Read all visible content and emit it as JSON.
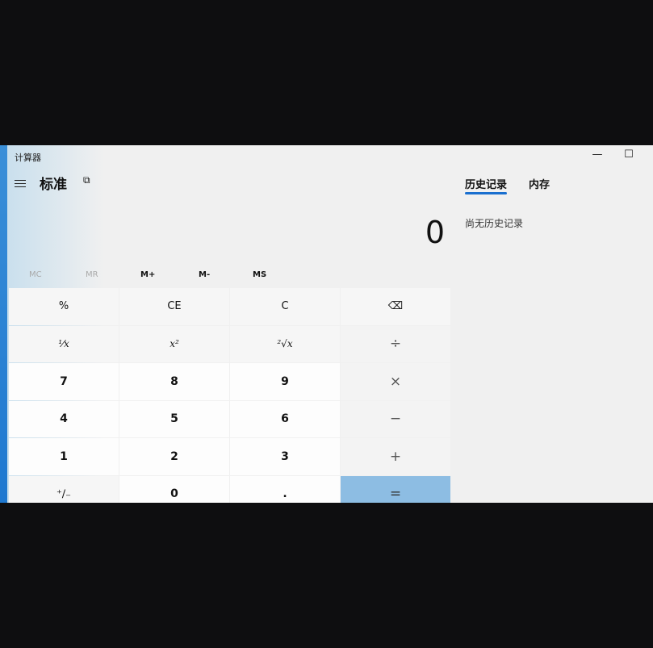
{
  "window": {
    "title": "计算器",
    "minimize": "—",
    "maximize": "☐"
  },
  "header": {
    "mode": "标准",
    "keep_on_top_icon": "⧉",
    "menu_icon": "hamburger"
  },
  "display": {
    "value": "0"
  },
  "memory": [
    {
      "label": "MC",
      "enabled": false
    },
    {
      "label": "MR",
      "enabled": false
    },
    {
      "label": "M+",
      "enabled": true
    },
    {
      "label": "M-",
      "enabled": true
    },
    {
      "label": "MS",
      "enabled": true
    }
  ],
  "side": {
    "tabs": [
      {
        "label": "历史记录",
        "active": true
      },
      {
        "label": "内存",
        "active": false
      }
    ],
    "empty_text": "尚无历史记录",
    "accent": "#1a6fcf"
  },
  "keys": [
    {
      "label": "%",
      "type": "fn"
    },
    {
      "label": "CE",
      "type": "fn"
    },
    {
      "label": "C",
      "type": "fn"
    },
    {
      "label": "⌫",
      "type": "fn"
    },
    {
      "label": "¹⁄x",
      "type": "it"
    },
    {
      "label": "x²",
      "type": "it"
    },
    {
      "label": "²√x",
      "type": "it"
    },
    {
      "label": "÷",
      "type": "op"
    },
    {
      "label": "7",
      "type": "n"
    },
    {
      "label": "8",
      "type": "n"
    },
    {
      "label": "9",
      "type": "n"
    },
    {
      "label": "×",
      "type": "op"
    },
    {
      "label": "4",
      "type": "n"
    },
    {
      "label": "5",
      "type": "n"
    },
    {
      "label": "6",
      "type": "n"
    },
    {
      "label": "−",
      "type": "op"
    },
    {
      "label": "1",
      "type": "n"
    },
    {
      "label": "2",
      "type": "n"
    },
    {
      "label": "3",
      "type": "n"
    },
    {
      "label": "+",
      "type": "op"
    },
    {
      "label": "⁺∕₋",
      "type": "fn"
    },
    {
      "label": "0",
      "type": "n"
    },
    {
      "label": ".",
      "type": "n"
    },
    {
      "label": "=",
      "type": "eq"
    }
  ],
  "equals_color": "#8dbde3"
}
